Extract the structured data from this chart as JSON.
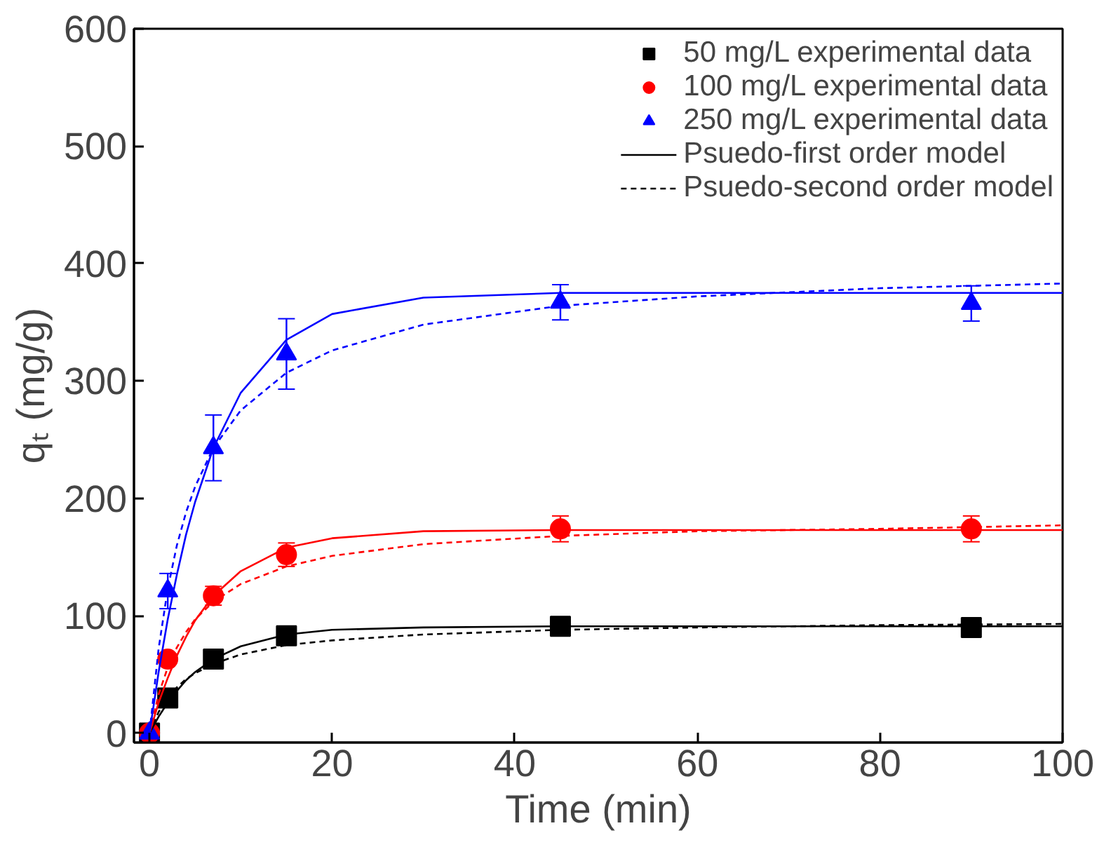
{
  "chart_data": {
    "type": "scatter",
    "xlabel": "Time (min)",
    "ylabel": "qₜ (mg/g)",
    "xlim": [
      -1.7,
      100
    ],
    "ylim": [
      -8,
      600
    ],
    "xticks": [
      0,
      20,
      40,
      60,
      80,
      100
    ],
    "yticks": [
      0,
      100,
      200,
      300,
      400,
      500,
      600
    ],
    "grid": false,
    "legend": "top right",
    "series": [
      {
        "name": "50 mg/L experimental data",
        "color": "#000000",
        "marker": "square",
        "x": [
          0,
          2,
          7,
          15,
          45,
          90
        ],
        "values": [
          0,
          30,
          63,
          83,
          91,
          90
        ]
      },
      {
        "name": "100 mg/L experimental data",
        "color": "#ff0000",
        "marker": "circle",
        "x": [
          0,
          2,
          7,
          15,
          45,
          90
        ],
        "values": [
          0,
          63,
          117,
          152,
          174,
          174
        ],
        "errors": [
          null,
          null,
          8,
          10,
          11,
          11
        ]
      },
      {
        "name": "250 mg/L experimental data",
        "color": "#0000ff",
        "marker": "triangle",
        "x": [
          0,
          2,
          7,
          15,
          45,
          90
        ],
        "values": [
          0,
          121,
          243,
          323,
          367,
          366
        ],
        "errors": [
          null,
          15,
          28,
          30,
          15,
          15
        ]
      },
      {
        "name": "Psuedo-first order model",
        "type": "line",
        "line_style": "solid",
        "color": "#000000",
        "x": [
          0,
          1,
          2,
          3,
          4,
          5,
          7,
          10,
          15,
          20,
          30,
          45,
          60,
          80,
          100
        ],
        "values": [
          0,
          14,
          26,
          36,
          45,
          52,
          63,
          74,
          84,
          88,
          90,
          91,
          91,
          91,
          91
        ]
      },
      {
        "name": "Psuedo-second order model",
        "type": "line",
        "line_style": "dashed",
        "color": "#000000",
        "x": [
          0,
          1,
          2,
          3,
          4,
          5,
          7,
          10,
          15,
          20,
          30,
          45,
          60,
          80,
          100
        ],
        "values": [
          0,
          18,
          30,
          39,
          46,
          51,
          59,
          67,
          75,
          79,
          84,
          88,
          90,
          92,
          93
        ]
      },
      {
        "type": "line",
        "line_style": "solid",
        "color": "#ff0000",
        "x": [
          0,
          1,
          2,
          3,
          4,
          5,
          7,
          10,
          15,
          20,
          30,
          45,
          60,
          80,
          100
        ],
        "values": [
          0,
          26,
          47,
          66,
          82,
          96,
          117,
          138,
          158,
          166,
          172,
          173,
          173,
          173,
          173
        ]
      },
      {
        "type": "line",
        "line_style": "dashed",
        "color": "#ff0000",
        "x": [
          0,
          1,
          2,
          3,
          4,
          5,
          7,
          10,
          15,
          20,
          30,
          45,
          60,
          80,
          100
        ],
        "values": [
          0,
          33,
          56,
          73,
          86,
          97,
          112,
          127,
          142,
          151,
          161,
          168,
          172,
          174,
          177
        ]
      },
      {
        "type": "line",
        "line_style": "solid",
        "color": "#0000ff",
        "x": [
          0,
          1,
          2,
          3,
          4,
          5,
          7,
          10,
          15,
          20,
          30,
          45,
          60,
          80,
          100
        ],
        "values": [
          0,
          52,
          97,
          135,
          169,
          197,
          243,
          290,
          335,
          357,
          371,
          375,
          375,
          375,
          375
        ]
      },
      {
        "type": "line",
        "line_style": "dashed",
        "color": "#0000ff",
        "x": [
          0,
          1,
          2,
          3,
          4,
          5,
          7,
          10,
          15,
          20,
          30,
          45,
          60,
          80,
          100
        ],
        "values": [
          0,
          72,
          123,
          160,
          188,
          210,
          243,
          275,
          307,
          326,
          348,
          364,
          372,
          379,
          383
        ]
      }
    ]
  }
}
